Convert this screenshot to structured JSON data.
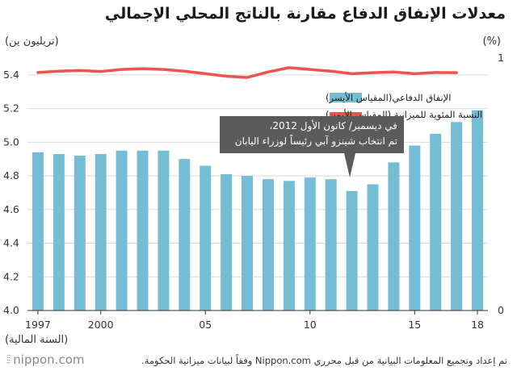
{
  "title": "معدلات الإنفاق الدفاع مقارنة بالناتج المحلي الإجمالي",
  "left_unit": "(تريليون ين)",
  "right_unit": "(%)",
  "x_axis_label": "(السنة المالية)",
  "callout": {
    "line1": "في ديسمبر/ كانون الأول 2012،",
    "line2": "تم انتخاب شينزو آبي رئيساً لوزراء اليابان"
  },
  "logo": "nippon.com",
  "source": "تم إعداد وتجميع المعلومات البيانية من قبل محرري Nippon.com وفقاً لبيانات ميزانية الحكومة.",
  "colors": {
    "bar": "#75bcd5",
    "line": "#ef5350",
    "callout": "#5b5b5b"
  },
  "chart_data": {
    "type": "bar+line",
    "categories": [
      "1997",
      "1998",
      "1999",
      "2000",
      "2001",
      "2002",
      "2003",
      "2004",
      "2005",
      "2006",
      "2007",
      "2008",
      "2009",
      "2010",
      "2011",
      "2012",
      "2013",
      "2014",
      "2015",
      "2016",
      "2017",
      "2018"
    ],
    "x_tick_labels": [
      "1997",
      "",
      "",
      "2000",
      "",
      "",
      "",
      "",
      "05",
      "",
      "",
      "",
      "",
      "10",
      "",
      "",
      "",
      "",
      "15",
      "",
      "",
      "18"
    ],
    "series": [
      {
        "name": "الإنفاق الدفاعي(المقياس الأيسر)",
        "type": "bar",
        "axis": "left",
        "values": [
          4.94,
          4.93,
          4.92,
          4.93,
          4.95,
          4.95,
          4.95,
          4.9,
          4.86,
          4.81,
          4.8,
          4.78,
          4.77,
          4.79,
          4.78,
          4.71,
          4.75,
          4.88,
          4.98,
          5.05,
          5.12,
          5.19
        ]
      },
      {
        "name": "النسبة المئوية للميزانية (المقياس الأيمن)",
        "type": "line",
        "axis": "right",
        "x": [
          1997,
          1998,
          1999,
          2000,
          2001,
          2002,
          2003,
          2004,
          2005,
          2006,
          2007,
          2008,
          2009,
          2010,
          2011,
          2012,
          2013,
          2014,
          2015,
          2016,
          2017
        ],
        "values": [
          0.943,
          0.948,
          0.951,
          0.947,
          0.955,
          0.958,
          0.955,
          0.948,
          0.938,
          0.928,
          0.923,
          0.945,
          0.962,
          0.955,
          0.948,
          0.938,
          0.942,
          0.945,
          0.938,
          0.943,
          0.942
        ]
      }
    ],
    "y_left": {
      "ylim": [
        4.0,
        5.5
      ],
      "ticks": [
        "4.0",
        "4.2",
        "4.4",
        "4.6",
        "4.8",
        "5.0",
        "5.2",
        "5.4"
      ]
    },
    "y_right": {
      "ylim": [
        0,
        1
      ],
      "ticks": [
        "0",
        "1"
      ]
    },
    "legend_position": "upper-right"
  }
}
